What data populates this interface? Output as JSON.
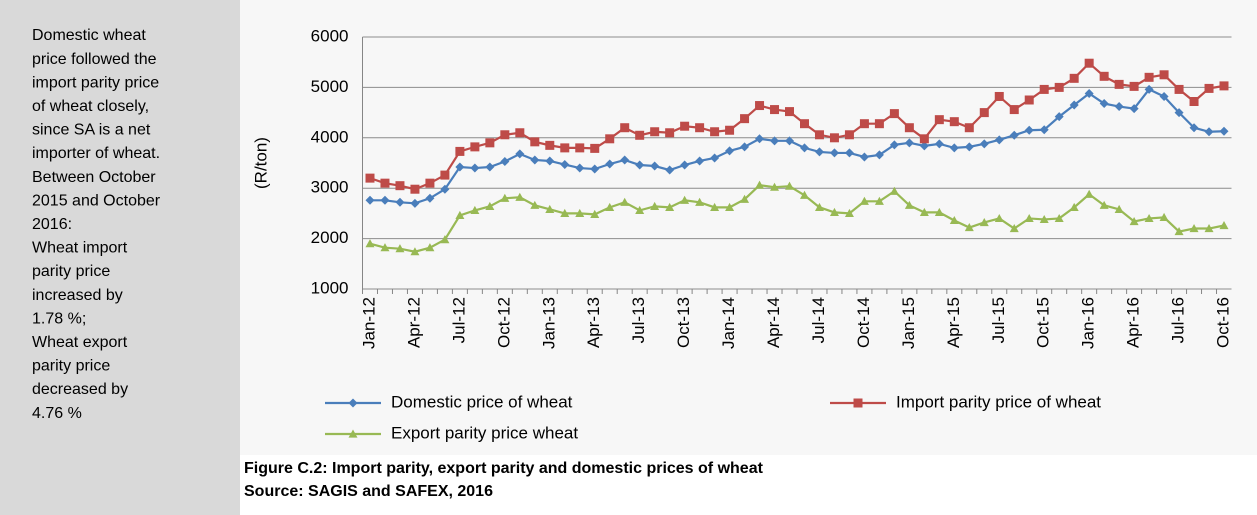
{
  "sidebar": {
    "lines": [
      "Domestic wheat",
      "price followed the",
      "import parity price",
      "of wheat closely,",
      "since SA is a net",
      "importer of wheat.",
      "Between October",
      "2015 and October",
      "2016:",
      "Wheat import",
      "parity price",
      "increased by",
      "1.78 %;",
      "Wheat export",
      "parity price",
      "decreased by",
      "4.76 %"
    ]
  },
  "caption": {
    "title": "Figure C.2: Import parity, export parity and domestic prices of wheat",
    "source": "Source: SAGIS and SAFEX, 2016"
  },
  "chart_data": {
    "type": "line",
    "ylabel": "(R/ton)",
    "categories": [
      "Jan-12",
      null,
      null,
      "Apr-12",
      null,
      null,
      "Jul-12",
      null,
      null,
      "Oct-12",
      null,
      null,
      "Jan-13",
      null,
      null,
      "Apr-13",
      null,
      null,
      "Jul-13",
      null,
      null,
      "Oct-13",
      null,
      null,
      "Jan-14",
      null,
      null,
      "Apr-14",
      null,
      null,
      "Jul-14",
      null,
      null,
      "Oct-14",
      null,
      null,
      "Jan-15",
      null,
      null,
      "Apr-15",
      null,
      null,
      "Jul-15",
      null,
      null,
      "Oct-15",
      null,
      null,
      "Jan-16",
      null,
      null,
      "Apr-16",
      null,
      null,
      "Jul-16",
      null,
      null,
      "Oct-16"
    ],
    "ylim": [
      1000,
      6000
    ],
    "yticks": [
      1000,
      2000,
      3000,
      4000,
      5000,
      6000
    ],
    "grid": true,
    "series": [
      {
        "name": "Domestic price of wheat",
        "color": "#4a7ebb",
        "marker": "diamond",
        "values": [
          2760,
          2760,
          2720,
          2700,
          2800,
          2980,
          3420,
          3400,
          3420,
          3530,
          3680,
          3560,
          3540,
          3470,
          3400,
          3380,
          3480,
          3560,
          3460,
          3440,
          3360,
          3460,
          3540,
          3600,
          3740,
          3820,
          3980,
          3940,
          3940,
          3800,
          3720,
          3700,
          3700,
          3620,
          3660,
          3860,
          3900,
          3840,
          3880,
          3800,
          3820,
          3880,
          3960,
          4050,
          4150,
          4160,
          4420,
          4650,
          4880,
          4680,
          4620,
          4580,
          4960,
          4820,
          4500,
          4200,
          4120,
          4130
        ]
      },
      {
        "name": "Import parity price of wheat",
        "color": "#be4b48",
        "marker": "square",
        "values": [
          3200,
          3100,
          3050,
          2980,
          3100,
          3260,
          3730,
          3820,
          3900,
          4060,
          4100,
          3920,
          3850,
          3800,
          3800,
          3790,
          3980,
          4200,
          4050,
          4120,
          4100,
          4230,
          4200,
          4120,
          4150,
          4380,
          4640,
          4560,
          4520,
          4280,
          4060,
          4000,
          4060,
          4280,
          4280,
          4480,
          4200,
          3980,
          4360,
          4320,
          4200,
          4500,
          4820,
          4560,
          4750,
          4960,
          5000,
          5180,
          5480,
          5220,
          5060,
          5020,
          5200,
          5250,
          4960,
          4720,
          4980,
          5030
        ]
      },
      {
        "name": "Export parity price wheat",
        "color": "#98b954",
        "marker": "triangle",
        "values": [
          1900,
          1820,
          1800,
          1740,
          1820,
          1980,
          2460,
          2560,
          2640,
          2800,
          2820,
          2660,
          2580,
          2500,
          2500,
          2480,
          2620,
          2720,
          2560,
          2640,
          2620,
          2760,
          2720,
          2620,
          2620,
          2780,
          3060,
          3020,
          3040,
          2860,
          2620,
          2520,
          2500,
          2740,
          2740,
          2940,
          2660,
          2520,
          2520,
          2360,
          2220,
          2320,
          2400,
          2200,
          2400,
          2380,
          2400,
          2620,
          2880,
          2660,
          2580,
          2340,
          2400,
          2420,
          2140,
          2200,
          2200,
          2260
        ]
      }
    ]
  }
}
